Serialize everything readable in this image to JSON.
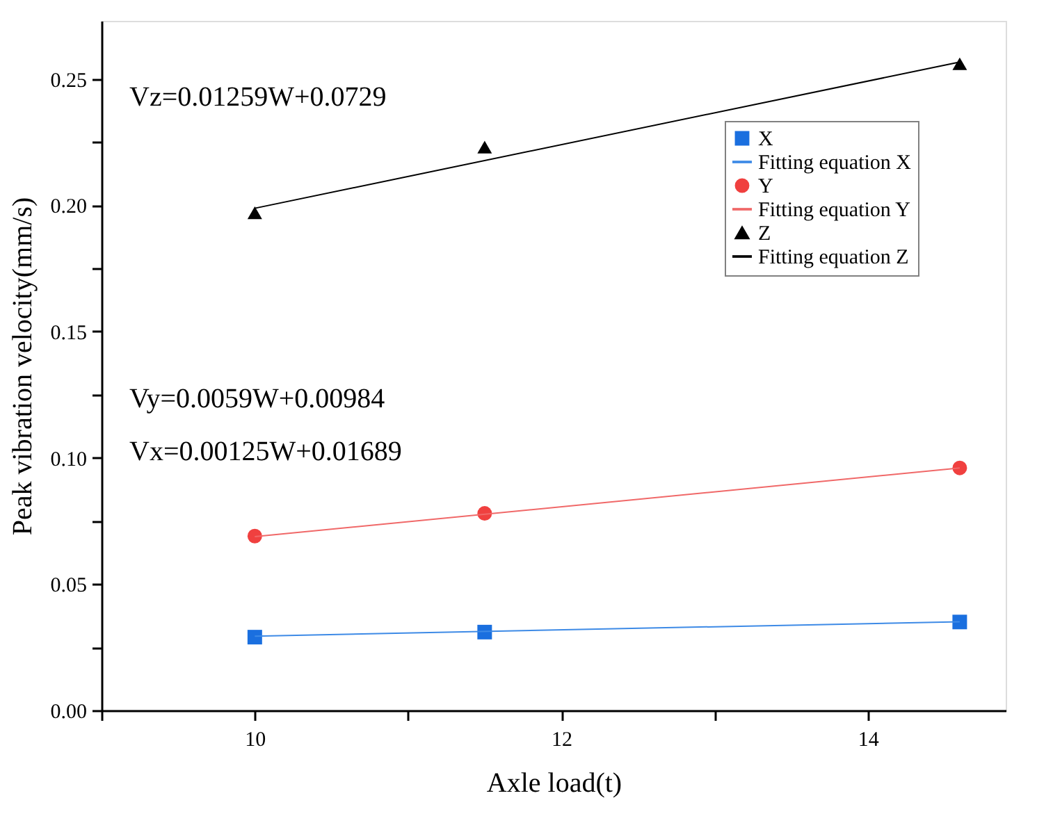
{
  "chart_data": {
    "type": "scatter",
    "xlabel": "Axle load(t)",
    "ylabel": "Peak vibration velocity(mm/s)",
    "xlim": [
      9,
      14.9
    ],
    "ylim": [
      0,
      0.273
    ],
    "xticks": [
      {
        "value": 9,
        "label": null
      },
      10,
      {
        "value": 11,
        "label": null
      },
      12,
      {
        "value": 13,
        "label": null
      },
      14
    ],
    "yticks": [
      {
        "value": 0,
        "label": "0.00"
      },
      {
        "value": 0.025,
        "label": null
      },
      0.05,
      {
        "value": 0.075,
        "label": null
      },
      {
        "value": 0.1,
        "label": "0.10"
      },
      {
        "value": 0.125,
        "label": null
      },
      0.15,
      {
        "value": 0.175,
        "label": null
      },
      {
        "value": 0.2,
        "label": "0.20"
      },
      {
        "value": 0.225,
        "label": null
      },
      0.25
    ],
    "grid": false,
    "legend": "top right",
    "series": [
      {
        "name": "X",
        "marker": "square",
        "color": "#1a6fdf",
        "x": [
          10,
          11.5,
          14.6
        ],
        "values": [
          0.029,
          0.031,
          0.035
        ]
      },
      {
        "name": "Fitting equation X",
        "type": "line",
        "marker": "none",
        "color": "#3d8ae6",
        "x": [
          10,
          14.6
        ],
        "values": [
          0.0294,
          0.0351
        ]
      },
      {
        "name": "Y",
        "marker": "circle",
        "color": "#f0403f",
        "x": [
          10,
          11.5,
          14.6
        ],
        "values": [
          0.069,
          0.078,
          0.096
        ]
      },
      {
        "name": "Fitting equation Y",
        "type": "line",
        "marker": "none",
        "color": "#f06868",
        "x": [
          10,
          14.6
        ],
        "values": [
          0.0688,
          0.096
        ]
      },
      {
        "name": "Z",
        "marker": "triangle",
        "color": "#000000",
        "x": [
          10,
          11.5,
          14.6
        ],
        "values": [
          0.197,
          0.223,
          0.256
        ]
      },
      {
        "name": "Fitting equation Z",
        "type": "line",
        "marker": "none",
        "color": "#000000",
        "x": [
          10,
          14.6
        ],
        "values": [
          0.1988,
          0.2567
        ]
      }
    ],
    "annotations": [
      "Vz=0.01259W+0.0729",
      "Vy=0.0059W+0.00984",
      "Vx=0.00125W+0.01689"
    ]
  }
}
